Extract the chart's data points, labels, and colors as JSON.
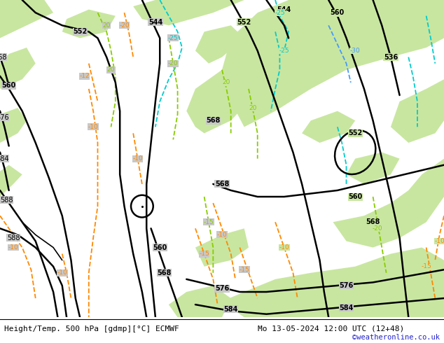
{
  "title_left": "Height/Temp. 500 hPa [gdmp][°C] ECMWF",
  "title_right": "Mo 13-05-2024 12:00 UTC (12+48)",
  "credit": "©weatheronline.co.uk",
  "bg_gray": "#c8c8c8",
  "green": "#c8e6a0",
  "green_light": "#d8eeB0",
  "figsize": [
    6.34,
    4.9
  ],
  "dpi": 100,
  "font_size_title": 8,
  "font_size_credit": 7.5
}
